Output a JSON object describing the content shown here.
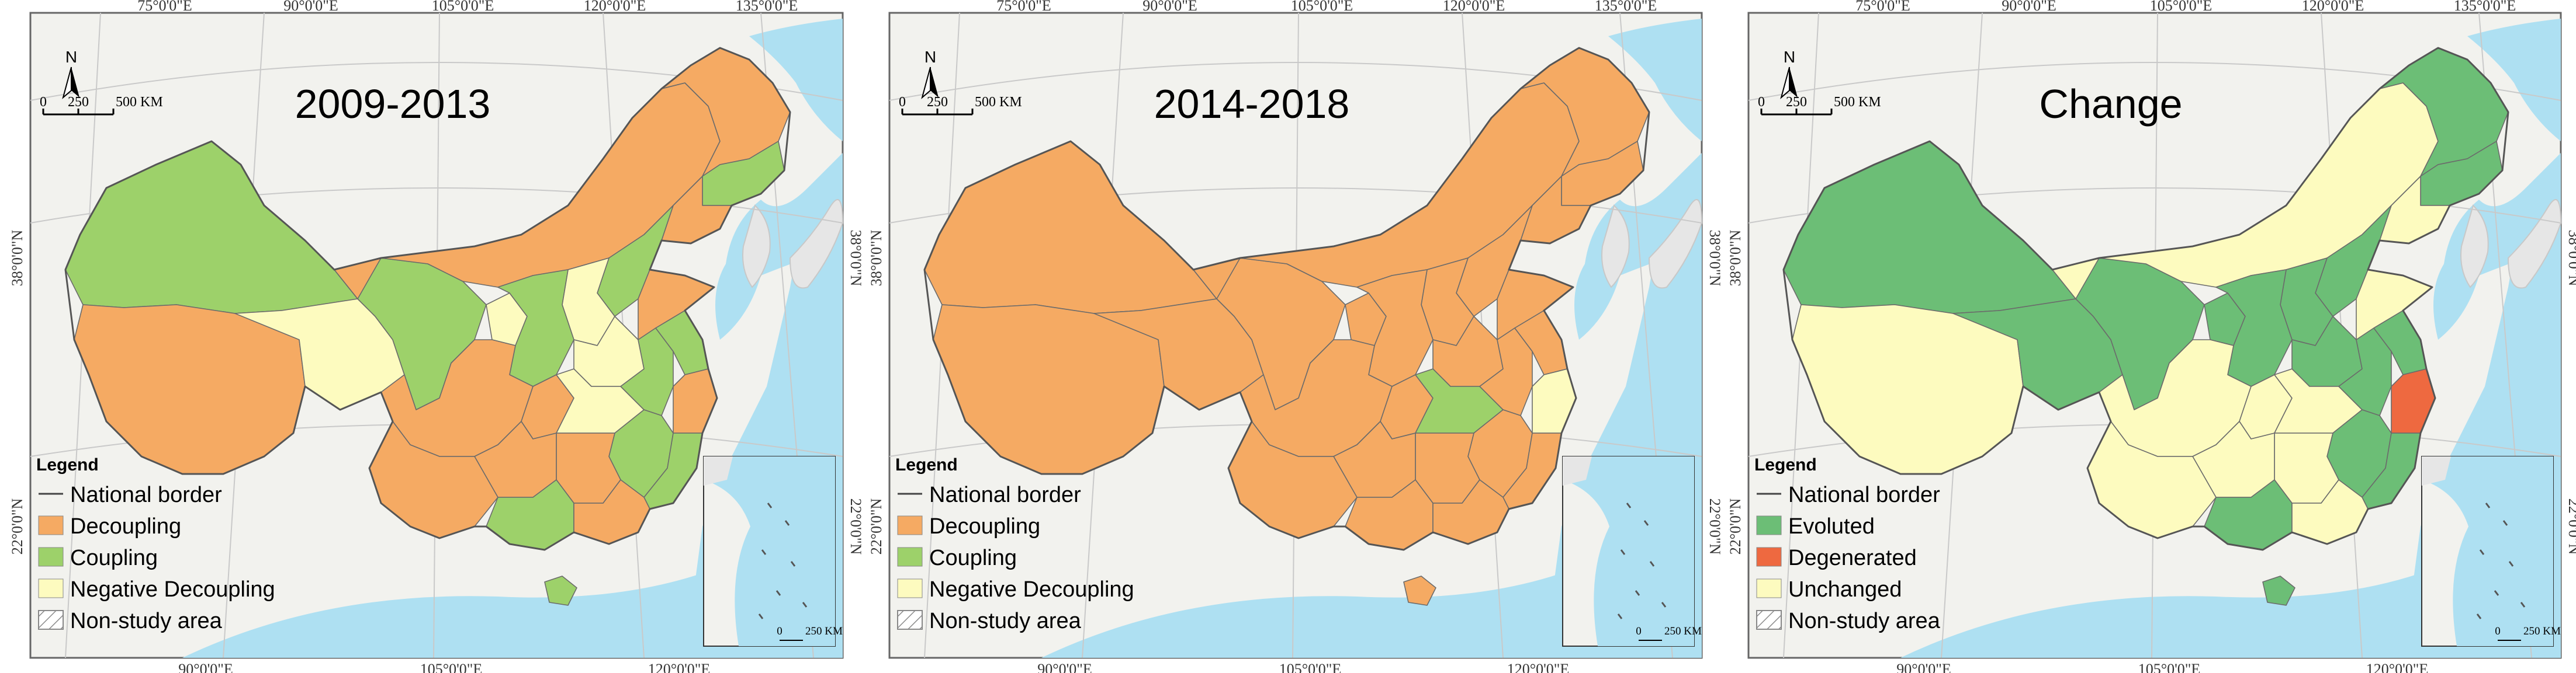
{
  "colors": {
    "decoupling": "#f5aa63",
    "coupling": "#9dd16a",
    "negative_decoupling": "#fdfbbf",
    "evoluted": "#6cbe76",
    "degenerated": "#ee6940",
    "unchanged": "#fdfbbf",
    "sea": "#aee0f2",
    "non_study": "#e6e6e6"
  },
  "coords": {
    "top_lon": [
      "75°0'0\"E",
      "90°0'0\"E",
      "105°0'0\"E",
      "120°0'0\"E",
      "135°0'0\"E"
    ],
    "bottom_lon": [
      "90°0'0\"E",
      "105°0'0\"E",
      "120°0'0\"E"
    ],
    "lat": [
      "38°0'0\"N",
      "22°0'0\"N"
    ]
  },
  "north_arrow": {
    "label": "N",
    "icon": "north-arrow-icon"
  },
  "scale_bar": {
    "ticks": [
      "0",
      "250",
      "500 KM"
    ]
  },
  "inset_scale": {
    "ticks": [
      "0",
      "250 KM"
    ]
  },
  "legend_title": "Legend",
  "panels": [
    {
      "title": "2009-2013",
      "legend": [
        {
          "label": "National border",
          "kind": "line"
        },
        {
          "label": "Decoupling",
          "color": "#f5aa63"
        },
        {
          "label": "Coupling",
          "color": "#9dd16a"
        },
        {
          "label": "Negative Decoupling",
          "color": "#fdfbbf"
        },
        {
          "label": "Non-study area",
          "kind": "hatch"
        }
      ]
    },
    {
      "title": "2014-2018",
      "legend": [
        {
          "label": "National border",
          "kind": "line"
        },
        {
          "label": "Decoupling",
          "color": "#f5aa63"
        },
        {
          "label": "Coupling",
          "color": "#9dd16a"
        },
        {
          "label": "Negative Decoupling",
          "color": "#fdfbbf"
        },
        {
          "label": "Non-study area",
          "kind": "hatch"
        }
      ]
    },
    {
      "title": "Change",
      "legend": [
        {
          "label": "National border",
          "kind": "line"
        },
        {
          "label": "Evoluted",
          "color": "#6cbe76"
        },
        {
          "label": "Degenerated",
          "color": "#ee6940"
        },
        {
          "label": "Unchanged",
          "color": "#fdfbbf"
        },
        {
          "label": "Non-study area",
          "kind": "hatch"
        }
      ]
    }
  ]
}
